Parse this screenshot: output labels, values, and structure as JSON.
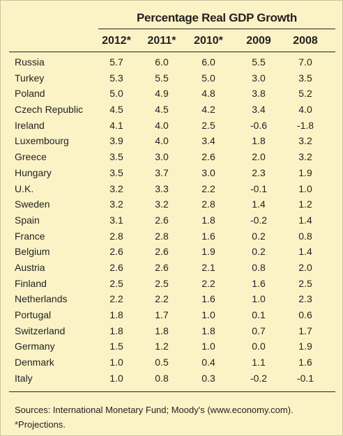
{
  "table": {
    "group_title": "Percentage Real GDP Growth",
    "columns": [
      "2012*",
      "2011*",
      "2010*",
      "2009",
      "2008"
    ],
    "rows": [
      {
        "country": "Russia",
        "values": [
          "5.7",
          "6.0",
          "6.0",
          "5.5",
          "7.0"
        ]
      },
      {
        "country": "Turkey",
        "values": [
          "5.3",
          "5.5",
          "5.0",
          "3.0",
          "3.5"
        ]
      },
      {
        "country": "Poland",
        "values": [
          "5.0",
          "4.9",
          "4.8",
          "3.8",
          "5.2"
        ]
      },
      {
        "country": "Czech Republic",
        "values": [
          "4.5",
          "4.5",
          "4.2",
          "3.4",
          "4.0"
        ]
      },
      {
        "country": "Ireland",
        "values": [
          "4.1",
          "4.0",
          "2.5",
          "-0.6",
          "-1.8"
        ]
      },
      {
        "country": "Luxembourg",
        "values": [
          "3.9",
          "4.0",
          "3.4",
          "1.8",
          "3.2"
        ]
      },
      {
        "country": "Greece",
        "values": [
          "3.5",
          "3.0",
          "2.6",
          "2.0",
          "3.2"
        ]
      },
      {
        "country": "Hungary",
        "values": [
          "3.5",
          "3.7",
          "3.0",
          "2.3",
          "1.9"
        ]
      },
      {
        "country": "U.K.",
        "values": [
          "3.2",
          "3.3",
          "2.2",
          "-0.1",
          "1.0"
        ]
      },
      {
        "country": "Sweden",
        "values": [
          "3.2",
          "3.2",
          "2.8",
          "1.4",
          "1.2"
        ]
      },
      {
        "country": "Spain",
        "values": [
          "3.1",
          "2.6",
          "1.8",
          "-0.2",
          "1.4"
        ]
      },
      {
        "country": "France",
        "values": [
          "2.8",
          "2.8",
          "1.6",
          "0.2",
          "0.8"
        ]
      },
      {
        "country": "Belgium",
        "values": [
          "2.6",
          "2.6",
          "1.9",
          "0.2",
          "1.4"
        ]
      },
      {
        "country": "Austria",
        "values": [
          "2.6",
          "2.6",
          "2.1",
          "0.8",
          "2.0"
        ]
      },
      {
        "country": "Finland",
        "values": [
          "2.5",
          "2.5",
          "2.2",
          "1.6",
          "2.5"
        ]
      },
      {
        "country": "Netherlands",
        "values": [
          "2.2",
          "2.2",
          "1.6",
          "1.0",
          "2.3"
        ]
      },
      {
        "country": "Portugal",
        "values": [
          "1.8",
          "1.7",
          "1.0",
          "0.1",
          "0.6"
        ]
      },
      {
        "country": "Switzerland",
        "values": [
          "1.8",
          "1.8",
          "1.8",
          "0.7",
          "1.7"
        ]
      },
      {
        "country": "Germany",
        "values": [
          "1.5",
          "1.2",
          "1.0",
          "0.0",
          "1.9"
        ]
      },
      {
        "country": "Denmark",
        "values": [
          "1.0",
          "0.5",
          "0.4",
          "1.1",
          "1.6"
        ]
      },
      {
        "country": "Italy",
        "values": [
          "1.0",
          "0.8",
          "0.3",
          "-0.2",
          "-0.1"
        ]
      }
    ]
  },
  "footnotes": {
    "sources": "Sources: International Monetary Fund; Moody's (www.economy.com).",
    "projections": "*Projections."
  },
  "colors": {
    "background": "#fbf3c6",
    "text": "#231f20"
  }
}
